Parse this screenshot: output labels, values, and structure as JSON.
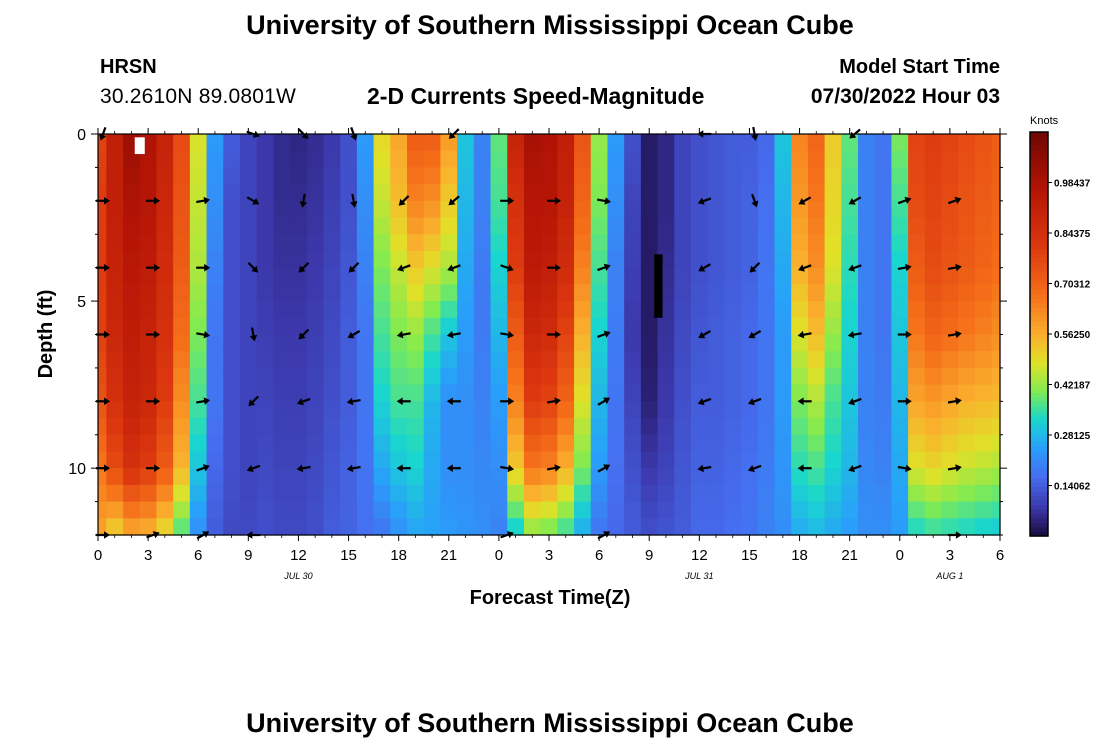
{
  "chart_data": {
    "type": "heatmap",
    "title": "University of Southern Mississippi Ocean Cube",
    "station": "HRSN",
    "location": "30.2610N  89.0801W",
    "subtitle": "2-D Currents Speed-Magnitude",
    "model_start_label": "Model Start Time",
    "model_start_value": "07/30/2022 Hour 03",
    "xlabel": "Forecast Time(Z)",
    "ylabel": "Depth (ft)",
    "x_range_hours": [
      0,
      54
    ],
    "x_ticks": [
      {
        "hour": 0,
        "label": "0"
      },
      {
        "hour": 3,
        "label": "3"
      },
      {
        "hour": 6,
        "label": "6"
      },
      {
        "hour": 9,
        "label": "9"
      },
      {
        "hour": 12,
        "label": "12"
      },
      {
        "hour": 15,
        "label": "15"
      },
      {
        "hour": 18,
        "label": "18"
      },
      {
        "hour": 21,
        "label": "21"
      },
      {
        "hour": 24,
        "label": "0"
      },
      {
        "hour": 27,
        "label": "3"
      },
      {
        "hour": 30,
        "label": "6"
      },
      {
        "hour": 33,
        "label": "9"
      },
      {
        "hour": 36,
        "label": "12"
      },
      {
        "hour": 39,
        "label": "15"
      },
      {
        "hour": 42,
        "label": "18"
      },
      {
        "hour": 45,
        "label": "21"
      },
      {
        "hour": 48,
        "label": "0"
      },
      {
        "hour": 51,
        "label": "3"
      },
      {
        "hour": 54,
        "label": "6"
      }
    ],
    "date_labels": [
      {
        "hour": 12,
        "label": "JUL 30"
      },
      {
        "hour": 36,
        "label": "JUL 31"
      },
      {
        "hour": 51,
        "label": "AUG 1"
      }
    ],
    "y_range_ft": [
      0,
      12
    ],
    "y_ticks": [
      0,
      5,
      10
    ],
    "colorbar": {
      "unit": "Knots",
      "range": [
        0,
        1.125
      ],
      "labels": [
        "0.98437",
        "0.84375",
        "0.70312",
        "0.56250",
        "0.42187",
        "0.28125",
        "0.14062"
      ]
    },
    "depth_levels_ft": [
      0,
      2,
      4,
      6,
      8,
      10,
      12
    ],
    "speed_knots_by_hour": [
      [
        0.78,
        0.8,
        0.8,
        0.79,
        0.74,
        0.66,
        0.58
      ],
      [
        0.92,
        0.92,
        0.9,
        0.88,
        0.84,
        0.76,
        0.5
      ],
      [
        1.02,
        0.98,
        0.95,
        0.93,
        0.9,
        0.84,
        0.56
      ],
      [
        0.98,
        0.96,
        0.93,
        0.9,
        0.88,
        0.8,
        0.55
      ],
      [
        0.9,
        0.88,
        0.86,
        0.84,
        0.8,
        0.72,
        0.48
      ],
      [
        0.76,
        0.74,
        0.72,
        0.68,
        0.62,
        0.55,
        0.36
      ],
      [
        0.48,
        0.46,
        0.44,
        0.4,
        0.36,
        0.3,
        0.22
      ],
      [
        0.24,
        0.22,
        0.2,
        0.18,
        0.18,
        0.16,
        0.14
      ],
      [
        0.14,
        0.12,
        0.12,
        0.12,
        0.12,
        0.12,
        0.11
      ],
      [
        0.1,
        0.1,
        0.1,
        0.1,
        0.1,
        0.1,
        0.11
      ],
      [
        0.08,
        0.08,
        0.08,
        0.09,
        0.1,
        0.11,
        0.12
      ],
      [
        0.06,
        0.06,
        0.07,
        0.08,
        0.09,
        0.1,
        0.11
      ],
      [
        0.05,
        0.06,
        0.07,
        0.08,
        0.09,
        0.1,
        0.11
      ],
      [
        0.06,
        0.07,
        0.08,
        0.09,
        0.1,
        0.11,
        0.12
      ],
      [
        0.08,
        0.09,
        0.1,
        0.11,
        0.12,
        0.13,
        0.14
      ],
      [
        0.12,
        0.12,
        0.13,
        0.14,
        0.14,
        0.15,
        0.15
      ],
      [
        0.24,
        0.22,
        0.2,
        0.18,
        0.18,
        0.18,
        0.17
      ],
      [
        0.5,
        0.46,
        0.4,
        0.36,
        0.32,
        0.26,
        0.18
      ],
      [
        0.58,
        0.54,
        0.46,
        0.4,
        0.36,
        0.3,
        0.22
      ],
      [
        0.72,
        0.64,
        0.52,
        0.42,
        0.36,
        0.32,
        0.25
      ],
      [
        0.72,
        0.62,
        0.48,
        0.36,
        0.28,
        0.26,
        0.25
      ],
      [
        0.6,
        0.52,
        0.44,
        0.3,
        0.22,
        0.22,
        0.24
      ],
      [
        0.3,
        0.28,
        0.26,
        0.24,
        0.22,
        0.22,
        0.23
      ],
      [
        0.2,
        0.2,
        0.19,
        0.19,
        0.2,
        0.21,
        0.22
      ],
      [
        0.38,
        0.36,
        0.32,
        0.28,
        0.24,
        0.22,
        0.2
      ],
      [
        0.9,
        0.84,
        0.8,
        0.72,
        0.64,
        0.52,
        0.3
      ],
      [
        1.0,
        0.96,
        0.94,
        0.88,
        0.8,
        0.66,
        0.4
      ],
      [
        0.98,
        0.96,
        0.92,
        0.86,
        0.78,
        0.64,
        0.38
      ],
      [
        0.92,
        0.9,
        0.86,
        0.78,
        0.7,
        0.56,
        0.34
      ],
      [
        0.74,
        0.7,
        0.64,
        0.56,
        0.48,
        0.4,
        0.26
      ],
      [
        0.42,
        0.4,
        0.36,
        0.32,
        0.28,
        0.24,
        0.18
      ],
      [
        0.24,
        0.22,
        0.2,
        0.19,
        0.18,
        0.17,
        0.16
      ],
      [
        0.12,
        0.1,
        0.09,
        0.08,
        0.1,
        0.12,
        0.14
      ],
      [
        0.03,
        0.03,
        0.03,
        0.03,
        0.04,
        0.08,
        0.12
      ],
      [
        0.05,
        0.05,
        0.06,
        0.07,
        0.08,
        0.1,
        0.13
      ],
      [
        0.1,
        0.1,
        0.1,
        0.11,
        0.12,
        0.13,
        0.14
      ],
      [
        0.12,
        0.12,
        0.12,
        0.13,
        0.14,
        0.15,
        0.16
      ],
      [
        0.13,
        0.13,
        0.13,
        0.14,
        0.14,
        0.15,
        0.16
      ],
      [
        0.14,
        0.14,
        0.14,
        0.15,
        0.15,
        0.16,
        0.17
      ],
      [
        0.14,
        0.15,
        0.15,
        0.16,
        0.16,
        0.17,
        0.18
      ],
      [
        0.16,
        0.17,
        0.18,
        0.18,
        0.18,
        0.19,
        0.2
      ],
      [
        0.3,
        0.28,
        0.26,
        0.24,
        0.24,
        0.23,
        0.22
      ],
      [
        0.64,
        0.6,
        0.56,
        0.48,
        0.4,
        0.34,
        0.26
      ],
      [
        0.7,
        0.66,
        0.62,
        0.54,
        0.44,
        0.36,
        0.28
      ],
      [
        0.52,
        0.5,
        0.48,
        0.42,
        0.36,
        0.32,
        0.26
      ],
      [
        0.38,
        0.36,
        0.34,
        0.32,
        0.3,
        0.28,
        0.24
      ],
      [
        0.2,
        0.2,
        0.2,
        0.2,
        0.2,
        0.21,
        0.22
      ],
      [
        0.18,
        0.18,
        0.18,
        0.18,
        0.19,
        0.2,
        0.22
      ],
      [
        0.4,
        0.36,
        0.32,
        0.3,
        0.28,
        0.26,
        0.24
      ],
      [
        0.78,
        0.76,
        0.72,
        0.66,
        0.58,
        0.48,
        0.32
      ],
      [
        0.8,
        0.78,
        0.76,
        0.7,
        0.6,
        0.5,
        0.34
      ],
      [
        0.78,
        0.76,
        0.74,
        0.68,
        0.58,
        0.48,
        0.33
      ],
      [
        0.76,
        0.74,
        0.72,
        0.66,
        0.56,
        0.46,
        0.32
      ],
      [
        0.74,
        0.72,
        0.7,
        0.64,
        0.55,
        0.45,
        0.31
      ],
      [
        0.72,
        0.7,
        0.68,
        0.62,
        0.54,
        0.44,
        0.3
      ]
    ],
    "current_vectors": [
      {
        "hour": 0.3,
        "dir": [
          [
            200,
            0
          ],
          [
            90,
            2
          ],
          [
            90,
            4
          ],
          [
            90,
            6
          ],
          [
            90,
            8
          ],
          [
            90,
            10
          ],
          [
            90,
            12
          ]
        ]
      },
      {
        "hour": 3.3,
        "dir": [
          [
            90,
            2
          ],
          [
            90,
            4
          ],
          [
            90,
            6
          ],
          [
            90,
            8
          ],
          [
            90,
            10
          ],
          [
            70,
            12
          ]
        ]
      },
      {
        "hour": 6.3,
        "dir": [
          [
            80,
            2
          ],
          [
            90,
            4
          ],
          [
            100,
            6
          ],
          [
            80,
            8
          ],
          [
            70,
            10
          ],
          [
            60,
            12
          ]
        ]
      },
      {
        "hour": 9.3,
        "dir": [
          [
            110,
            0
          ],
          [
            120,
            2
          ],
          [
            135,
            4
          ],
          [
            170,
            6
          ],
          [
            225,
            8
          ],
          [
            250,
            10
          ],
          [
            270,
            12
          ]
        ]
      },
      {
        "hour": 12.3,
        "dir": [
          [
            135,
            0
          ],
          [
            190,
            2
          ],
          [
            225,
            4
          ],
          [
            225,
            6
          ],
          [
            250,
            8
          ],
          [
            260,
            10
          ]
        ]
      },
      {
        "hour": 15.3,
        "dir": [
          [
            160,
            0
          ],
          [
            170,
            2
          ],
          [
            225,
            4
          ],
          [
            240,
            6
          ],
          [
            260,
            8
          ],
          [
            260,
            10
          ]
        ]
      },
      {
        "hour": 18.3,
        "dir": [
          [
            225,
            2
          ],
          [
            250,
            4
          ],
          [
            260,
            6
          ],
          [
            270,
            8
          ],
          [
            270,
            10
          ]
        ]
      },
      {
        "hour": 21.3,
        "dir": [
          [
            225,
            0
          ],
          [
            230,
            2
          ],
          [
            250,
            4
          ],
          [
            260,
            6
          ],
          [
            270,
            8
          ],
          [
            270,
            10
          ]
        ]
      },
      {
        "hour": 24.5,
        "dir": [
          [
            90,
            2
          ],
          [
            110,
            4
          ],
          [
            100,
            6
          ],
          [
            90,
            8
          ],
          [
            100,
            10
          ],
          [
            70,
            12
          ]
        ]
      },
      {
        "hour": 27.3,
        "dir": [
          [
            90,
            2
          ],
          [
            90,
            4
          ],
          [
            90,
            6
          ],
          [
            80,
            8
          ],
          [
            80,
            10
          ]
        ]
      },
      {
        "hour": 30.3,
        "dir": [
          [
            100,
            2
          ],
          [
            70,
            4
          ],
          [
            70,
            6
          ],
          [
            60,
            8
          ],
          [
            60,
            10
          ],
          [
            60,
            12
          ]
        ]
      },
      {
        "hour": 36.3,
        "dir": [
          [
            270,
            0
          ],
          [
            250,
            2
          ],
          [
            240,
            4
          ],
          [
            240,
            6
          ],
          [
            250,
            8
          ],
          [
            260,
            10
          ]
        ]
      },
      {
        "hour": 39.3,
        "dir": [
          [
            170,
            0
          ],
          [
            160,
            2
          ],
          [
            225,
            4
          ],
          [
            240,
            6
          ],
          [
            250,
            8
          ],
          [
            250,
            10
          ]
        ]
      },
      {
        "hour": 42.3,
        "dir": [
          [
            240,
            2
          ],
          [
            250,
            4
          ],
          [
            260,
            6
          ],
          [
            270,
            8
          ],
          [
            270,
            10
          ]
        ]
      },
      {
        "hour": 45.3,
        "dir": [
          [
            230,
            0
          ],
          [
            240,
            2
          ],
          [
            250,
            4
          ],
          [
            260,
            6
          ],
          [
            250,
            8
          ],
          [
            250,
            10
          ]
        ]
      },
      {
        "hour": 48.3,
        "dir": [
          [
            70,
            2
          ],
          [
            80,
            4
          ],
          [
            90,
            6
          ],
          [
            90,
            8
          ],
          [
            100,
            10
          ]
        ]
      },
      {
        "hour": 51.3,
        "dir": [
          [
            70,
            2
          ],
          [
            80,
            4
          ],
          [
            80,
            6
          ],
          [
            80,
            8
          ],
          [
            80,
            10
          ],
          [
            90,
            12
          ]
        ]
      }
    ],
    "markers": [
      {
        "kind": "white-block",
        "hour_from": 2.2,
        "hour_to": 2.8,
        "depth_from": 0.1,
        "depth_to": 0.6
      },
      {
        "kind": "black-bar",
        "hour_from": 33.3,
        "hour_to": 33.8,
        "depth_from": 3.6,
        "depth_to": 5.5
      }
    ]
  }
}
